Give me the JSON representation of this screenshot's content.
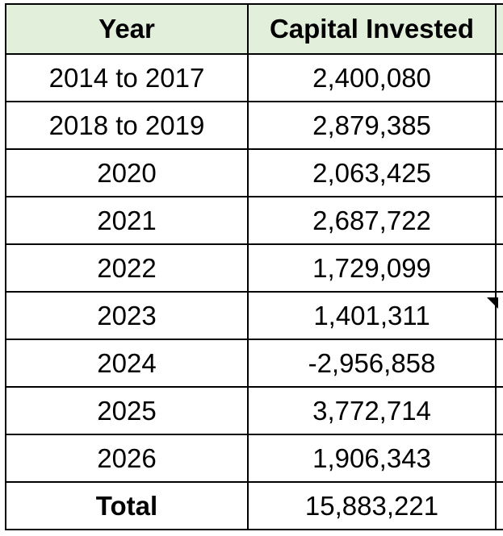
{
  "table": {
    "header": [
      "Year",
      "Capital Invested"
    ],
    "rows": [
      [
        "2014 to 2017",
        "2,400,080"
      ],
      [
        "2018 to 2019",
        "2,879,385"
      ],
      [
        "2020",
        "2,063,425"
      ],
      [
        "2021",
        "2,687,722"
      ],
      [
        "2022",
        "1,729,099"
      ],
      [
        "2023",
        "1,401,311"
      ],
      [
        "2024",
        "-2,956,858"
      ],
      [
        "2025",
        "3,772,714"
      ],
      [
        "2026",
        "1,906,343"
      ]
    ],
    "total": [
      "Total",
      "15,883,221"
    ]
  }
}
